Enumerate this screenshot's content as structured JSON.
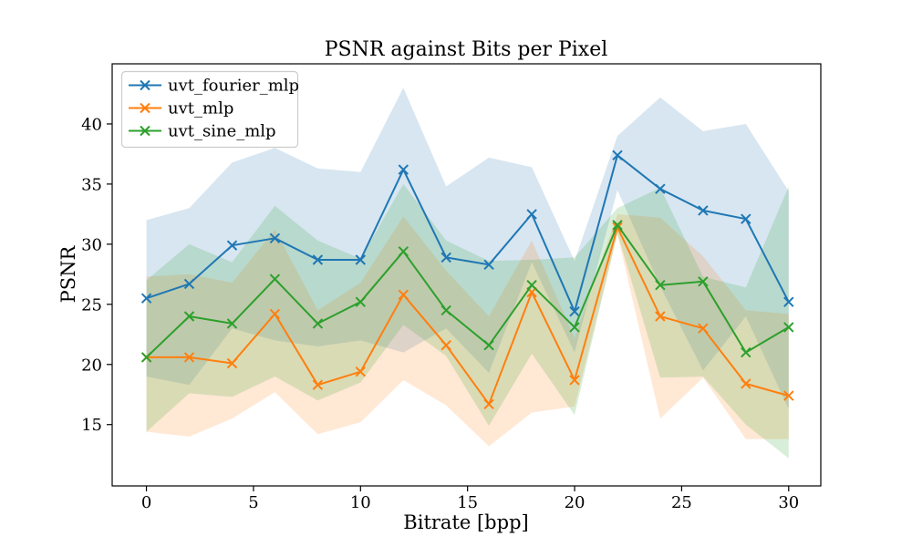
{
  "chart_data": {
    "type": "line",
    "title": "PSNR against Bits per Pixel",
    "xlabel": "Bitrate [bpp]",
    "ylabel": "PSNR",
    "x": [
      0,
      2,
      4,
      6,
      8,
      10,
      12,
      14,
      16,
      18,
      20,
      22,
      24,
      26,
      28,
      30
    ],
    "series": [
      {
        "name": "uvt_fourier_mlp",
        "color": "#1f77b4",
        "values": [
          25.5,
          26.7,
          29.9,
          30.5,
          28.7,
          28.7,
          36.2,
          28.9,
          28.3,
          32.5,
          24.4,
          37.4,
          34.6,
          32.8,
          32.1,
          25.2
        ],
        "band_upper": [
          32.0,
          33.0,
          36.8,
          38.0,
          36.3,
          36.0,
          43.0,
          34.8,
          37.2,
          36.4,
          28.6,
          39.0,
          42.2,
          39.4,
          40.0,
          34.4
        ],
        "band_lower": [
          19.0,
          18.3,
          23.0,
          22.0,
          21.5,
          22.0,
          21.0,
          23.0,
          19.3,
          28.5,
          21.0,
          34.5,
          26.5,
          19.5,
          24.0,
          16.3
        ]
      },
      {
        "name": "uvt_mlp",
        "color": "#ff7f0e",
        "values": [
          20.6,
          20.6,
          20.1,
          24.2,
          18.3,
          19.4,
          25.8,
          21.6,
          16.7,
          26.0,
          18.7,
          31.4,
          24.0,
          23.0,
          18.4,
          17.4
        ],
        "band_upper": [
          27.3,
          27.5,
          26.8,
          31.2,
          24.5,
          26.8,
          32.3,
          27.8,
          24.0,
          30.3,
          22.2,
          32.5,
          32.2,
          29.0,
          24.5,
          24.2
        ],
        "band_lower": [
          14.4,
          14.0,
          15.5,
          17.7,
          14.2,
          15.2,
          18.7,
          16.6,
          13.2,
          16.0,
          16.5,
          30.8,
          15.5,
          18.9,
          13.8,
          13.8
        ]
      },
      {
        "name": "uvt_sine_mlp",
        "color": "#2ca02c",
        "values": [
          20.6,
          24.0,
          23.4,
          27.1,
          23.4,
          25.2,
          29.4,
          24.5,
          21.6,
          26.6,
          23.1,
          31.6,
          26.6,
          26.9,
          21.0,
          23.1
        ],
        "band_upper": [
          27.0,
          30.0,
          28.5,
          33.2,
          30.3,
          28.8,
          35.0,
          30.3,
          28.6,
          28.7,
          28.9,
          33.0,
          34.7,
          27.3,
          26.4,
          34.8
        ],
        "band_lower": [
          14.4,
          17.6,
          17.3,
          19.0,
          17.0,
          18.5,
          23.3,
          20.7,
          14.9,
          20.9,
          15.8,
          30.9,
          18.9,
          19.0,
          15.0,
          12.2
        ]
      }
    ],
    "xticks": [
      0,
      5,
      10,
      15,
      20,
      25,
      30
    ],
    "yticks": [
      15,
      20,
      25,
      30,
      35,
      40
    ],
    "xlim": [
      -1.6,
      31.5
    ],
    "ylim": [
      9.9,
      45.0
    ],
    "grid": false,
    "marker": "x",
    "band_alpha": 0.18,
    "legend_position": "upper left",
    "frame_color": "#000000",
    "background_color": "#ffffff"
  }
}
